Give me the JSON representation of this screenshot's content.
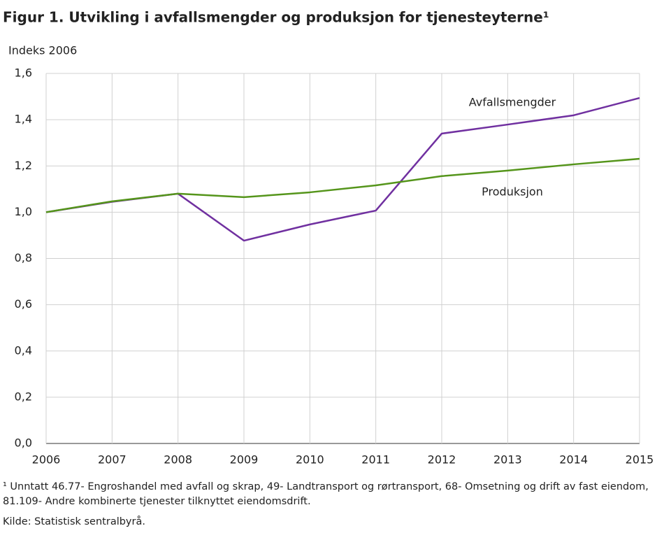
{
  "chart_data": {
    "type": "line",
    "title": "Figur 1. Utvikling i avfallsmengder og produksjon for tjenesteyterne¹",
    "y_label": "Indeks 2006",
    "x": [
      2006,
      2007,
      2008,
      2009,
      2010,
      2011,
      2012,
      2013,
      2014,
      2015
    ],
    "series": [
      {
        "name": "Avfallsmengder",
        "color": "#7030a0",
        "values": [
          1.0,
          1.045,
          1.08,
          0.877,
          0.947,
          1.007,
          1.34,
          1.379,
          1.419,
          1.494
        ]
      },
      {
        "name": "Produksjon",
        "color": "#55951b",
        "values": [
          1.0,
          1.047,
          1.08,
          1.065,
          1.086,
          1.116,
          1.156,
          1.18,
          1.207,
          1.231
        ]
      }
    ],
    "xlim": [
      2006,
      2015
    ],
    "xticks": [
      2006,
      2007,
      2008,
      2009,
      2010,
      2011,
      2012,
      2013,
      2014,
      2015
    ],
    "ylim": [
      0,
      1.6
    ],
    "yticks": [
      {
        "value": 0,
        "label": "0,0"
      },
      {
        "value": 0.2,
        "label": "0,2"
      },
      {
        "value": 0.4,
        "label": "0,4"
      },
      {
        "value": 0.6,
        "label": "0,6"
      },
      {
        "value": 0.8,
        "label": "0,8"
      },
      {
        "value": 1.0,
        "label": "1,0"
      },
      {
        "value": 1.2,
        "label": "1,2"
      },
      {
        "value": 1.4,
        "label": "1,4"
      },
      {
        "value": 1.6,
        "label": "1,6"
      }
    ],
    "grid": true,
    "footnote": "¹ Unntatt 46.77- Engroshandel med avfall og skrap, 49- Landtransport og rørtransport, 68- Omsetning og drift av fast eiendom, 81.109- Andre kombinerte tjenester tilknyttet eiendomsdrift.",
    "source": "Kilde: Statistisk sentralbyrå."
  }
}
